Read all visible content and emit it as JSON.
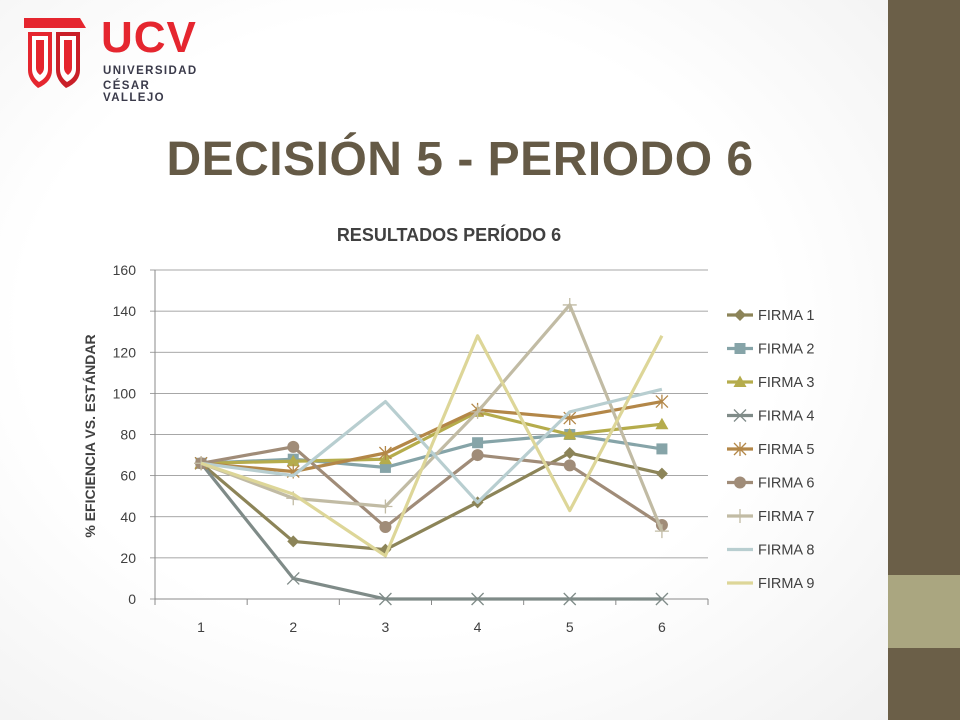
{
  "logo": {
    "name": "UCV",
    "line1": "UNIVERSIDAD",
    "line2": "CÉSAR VALLEJO"
  },
  "slide": {
    "title": "DECISIÓN 5 - PERIODO 6"
  },
  "chart_data": {
    "type": "line",
    "title": "RESULTADOS PERÍODO 6",
    "xlabel": "",
    "ylabel": "% EFICIENCIA VS. ESTÁNDAR",
    "x": [
      1,
      2,
      3,
      4,
      5,
      6
    ],
    "ylim": [
      0,
      160
    ],
    "yticks": [
      0,
      20,
      40,
      60,
      80,
      100,
      120,
      140,
      160
    ],
    "grid": true,
    "legend": "right",
    "series": [
      {
        "name": "FIRMA 1",
        "values": [
          66,
          28,
          24,
          47,
          71,
          61
        ],
        "color": "#8c8458",
        "marker": "diamond"
      },
      {
        "name": "FIRMA 2",
        "values": [
          66,
          68,
          64,
          76,
          80,
          73
        ],
        "color": "#86a4a8",
        "marker": "square"
      },
      {
        "name": "FIRMA 3",
        "values": [
          66,
          67,
          68,
          91,
          80,
          85
        ],
        "color": "#b5ac4c",
        "marker": "triangle"
      },
      {
        "name": "FIRMA 4",
        "values": [
          66,
          10,
          0,
          0,
          0,
          0
        ],
        "color": "#7f8b88",
        "marker": "x"
      },
      {
        "name": "FIRMA 5",
        "values": [
          66,
          62,
          71,
          92,
          88,
          96
        ],
        "color": "#b38748",
        "marker": "star"
      },
      {
        "name": "FIRMA 6",
        "values": [
          66,
          74,
          35,
          70,
          65,
          36
        ],
        "color": "#a08c78",
        "marker": "circle"
      },
      {
        "name": "FIRMA 7",
        "values": [
          66,
          49,
          45,
          91,
          143,
          33
        ],
        "color": "#c1bba4",
        "marker": "plus"
      },
      {
        "name": "FIRMA 8",
        "values": [
          66,
          60,
          96,
          47,
          91,
          102
        ],
        "color": "#b8ced0",
        "marker": "none"
      },
      {
        "name": "FIRMA 9",
        "values": [
          66,
          51,
          21,
          128,
          43,
          128
        ],
        "color": "#ddd698",
        "marker": "none"
      }
    ]
  }
}
